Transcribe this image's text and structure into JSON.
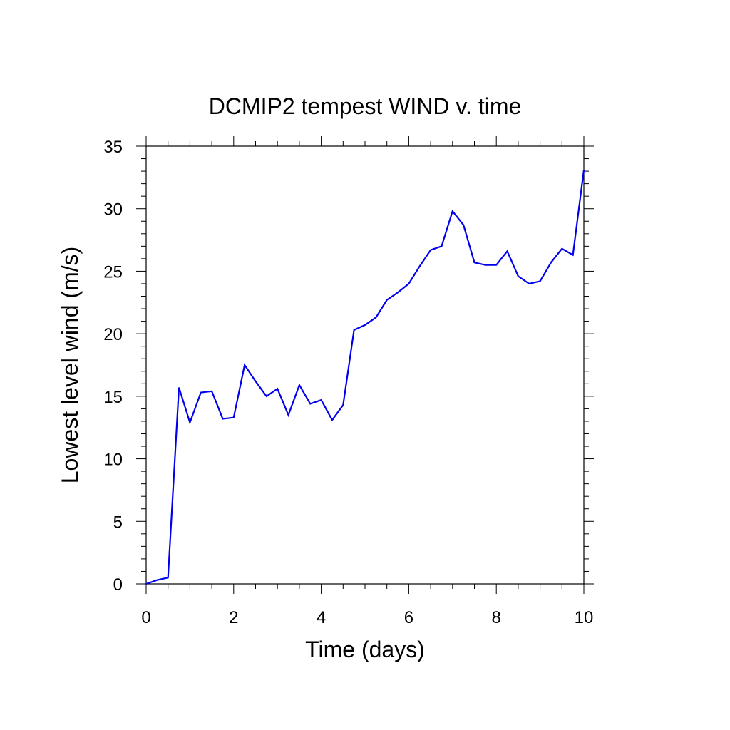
{
  "chart_data": {
    "type": "line",
    "title": "DCMIP2 tempest WIND v. time",
    "xlabel": "Time (days)",
    "ylabel": "Lowest level wind (m/s)",
    "xlim": [
      0,
      10
    ],
    "ylim": [
      0,
      35
    ],
    "x_ticks": [
      0,
      2,
      4,
      6,
      8,
      10
    ],
    "y_ticks": [
      0,
      5,
      10,
      15,
      20,
      25,
      30,
      35
    ],
    "x_tick_labels": [
      "0",
      "2",
      "4",
      "6",
      "8",
      "10"
    ],
    "y_tick_labels": [
      "0",
      "5",
      "10",
      "15",
      "20",
      "25",
      "30",
      "35"
    ],
    "grid": false,
    "line_color": "#0000ee",
    "series": [
      {
        "x": [
          0,
          0.25,
          0.5,
          0.75,
          1.0,
          1.25,
          1.5,
          1.75,
          2.0,
          2.25,
          2.5,
          2.75,
          3.0,
          3.25,
          3.5,
          3.75,
          4.0,
          4.25,
          4.5,
          4.75,
          5.0,
          5.25,
          5.5,
          5.75,
          6.0,
          6.25,
          6.5,
          6.75,
          7.0,
          7.25,
          7.5,
          7.75,
          8.0,
          8.25,
          8.5,
          8.75,
          9.0,
          9.25,
          9.5,
          9.75,
          10.0
        ],
        "y": [
          0.0,
          0.3,
          0.5,
          15.7,
          12.9,
          15.3,
          15.4,
          13.2,
          13.3,
          17.5,
          16.2,
          15.0,
          15.6,
          13.5,
          15.9,
          14.4,
          14.7,
          13.1,
          14.3,
          20.3,
          20.7,
          21.3,
          22.7,
          23.3,
          24.0,
          25.4,
          26.7,
          27.0,
          29.8,
          28.7,
          25.7,
          25.5,
          25.5,
          26.6,
          24.6,
          24.0,
          24.2,
          25.7,
          26.8,
          26.3,
          33.1
        ]
      }
    ]
  }
}
